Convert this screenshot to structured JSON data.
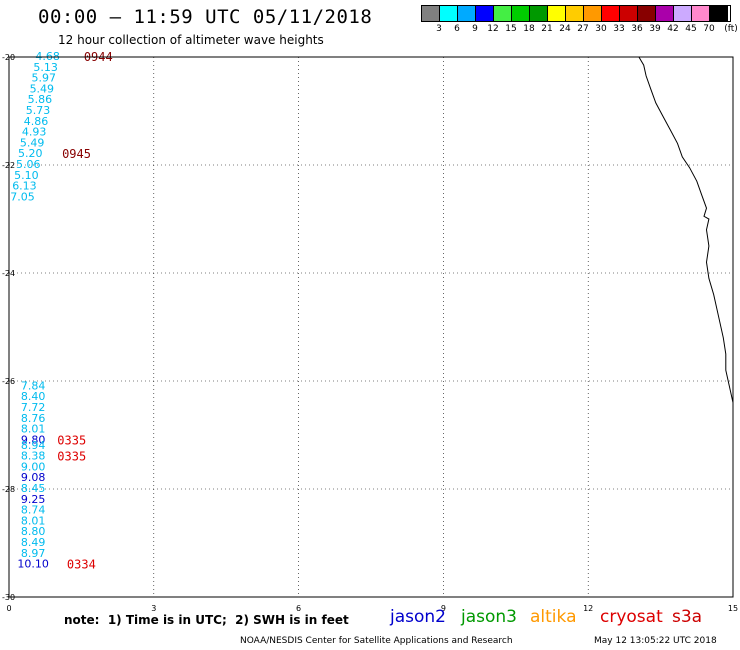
{
  "header": {
    "title": "00:00 – 11:59 UTC 05/11/2018",
    "subtitle": "12 hour collection of altimeter wave heights"
  },
  "legend": {
    "unit": "(ft)",
    "bins": [
      {
        "label": "3",
        "color": "#808080"
      },
      {
        "label": "6",
        "color": "#00ffff"
      },
      {
        "label": "9",
        "color": "#00aaff"
      },
      {
        "label": "12",
        "color": "#0000ff"
      },
      {
        "label": "15",
        "color": "#44ee44"
      },
      {
        "label": "18",
        "color": "#00cc00"
      },
      {
        "label": "21",
        "color": "#009900"
      },
      {
        "label": "24",
        "color": "#ffff00"
      },
      {
        "label": "27",
        "color": "#ffcc00"
      },
      {
        "label": "30",
        "color": "#ff9900"
      },
      {
        "label": "33",
        "color": "#ff0000"
      },
      {
        "label": "36",
        "color": "#cc0000"
      },
      {
        "label": "39",
        "color": "#880000"
      },
      {
        "label": "42",
        "color": "#aa00aa"
      },
      {
        "label": "45",
        "color": "#ccaaff"
      },
      {
        "label": "70",
        "color": "#ff88cc"
      },
      {
        "label": "",
        "color": "#000000"
      }
    ]
  },
  "map": {
    "lon_ticks": [
      "0",
      "3",
      "6",
      "9",
      "12",
      "15"
    ],
    "lat_ticks": [
      "-20",
      "-22",
      "-24",
      "-26",
      "-28",
      "-30"
    ],
    "colors": {
      "cyan": "#00bbee",
      "blue": "#0000cc",
      "darkred": "#880000",
      "red": "#dd0000",
      "coast": "#000000"
    },
    "track_nw": {
      "lon": 0.8,
      "values": [
        {
          "lat": -20.0,
          "swh": "4.68"
        },
        {
          "lat": -20.2,
          "swh": "5.13"
        },
        {
          "lat": -20.4,
          "swh": "5.97"
        },
        {
          "lat": -20.6,
          "swh": "5.49"
        },
        {
          "lat": -20.8,
          "swh": "5.86"
        },
        {
          "lat": -21.0,
          "swh": "5.73"
        },
        {
          "lat": -21.2,
          "swh": "4.86"
        },
        {
          "lat": -21.4,
          "swh": "4.93"
        },
        {
          "lat": -21.6,
          "swh": "5.49"
        },
        {
          "lat": -21.8,
          "swh": "5.20"
        },
        {
          "lat": -22.0,
          "swh": "5.06"
        },
        {
          "lat": -22.2,
          "swh": "5.10"
        },
        {
          "lat": -22.4,
          "swh": "6.13"
        },
        {
          "lat": -22.6,
          "swh": "7.05"
        }
      ],
      "times": [
        {
          "lat": -20.0,
          "lon": 1.55,
          "text": "0944",
          "color": "#880000"
        },
        {
          "lat": -21.8,
          "lon": 1.1,
          "text": "0945",
          "color": "#880000"
        }
      ]
    },
    "track_sw": {
      "lon": 0.5,
      "values": [
        {
          "lat": -26.1,
          "swh": "7.84",
          "color": "#00bbee"
        },
        {
          "lat": -26.3,
          "swh": "8.40",
          "color": "#00bbee"
        },
        {
          "lat": -26.5,
          "swh": "7.72",
          "color": "#00bbee"
        },
        {
          "lat": -26.7,
          "swh": "8.76",
          "color": "#00bbee"
        },
        {
          "lat": -26.9,
          "swh": "8.01",
          "color": "#00bbee"
        },
        {
          "lat": -27.1,
          "swh": "9.80",
          "color": "#0000cc"
        },
        {
          "lat": -27.2,
          "swh": "8.94",
          "color": "#00bbee"
        },
        {
          "lat": -27.4,
          "swh": "8.38",
          "color": "#00bbee"
        },
        {
          "lat": -27.6,
          "swh": "9.00",
          "color": "#00bbee"
        },
        {
          "lat": -27.8,
          "swh": "9.08",
          "color": "#0000cc"
        },
        {
          "lat": -28.0,
          "swh": "8.45",
          "color": "#00bbee"
        },
        {
          "lat": -28.2,
          "swh": "9.25",
          "color": "#0000cc"
        },
        {
          "lat": -28.4,
          "swh": "8.74",
          "color": "#00bbee"
        },
        {
          "lat": -28.6,
          "swh": "8.01",
          "color": "#00bbee"
        },
        {
          "lat": -28.8,
          "swh": "8.80",
          "color": "#00bbee"
        },
        {
          "lat": -29.0,
          "swh": "8.49",
          "color": "#00bbee"
        },
        {
          "lat": -29.2,
          "swh": "8.97",
          "color": "#00bbee"
        },
        {
          "lat": -29.4,
          "swh": "10.10",
          "color": "#0000cc"
        }
      ],
      "times": [
        {
          "lat": -27.1,
          "lon": 1.0,
          "text": "0335",
          "color": "#dd0000"
        },
        {
          "lat": -27.4,
          "lon": 1.0,
          "text": "0335",
          "color": "#dd0000"
        },
        {
          "lat": -29.4,
          "lon": 1.2,
          "text": "0334",
          "color": "#dd0000"
        }
      ]
    }
  },
  "footer": {
    "note": "note:  1) Time is in UTC;  2) SWH is in feet",
    "satellites": [
      {
        "name": "jason2",
        "color": "#0000cc"
      },
      {
        "name": "jason3",
        "color": "#009900"
      },
      {
        "name": "altika",
        "color": "#ff9900"
      },
      {
        "name": "cryosat",
        "color": "#dd0000"
      },
      {
        "name": "s3a",
        "color": "#cc0000"
      }
    ],
    "credit": "NOAA/NESDIS Center for Satellite Applications and Research",
    "stamp": "May 12 13:05:22 UTC 2018"
  }
}
